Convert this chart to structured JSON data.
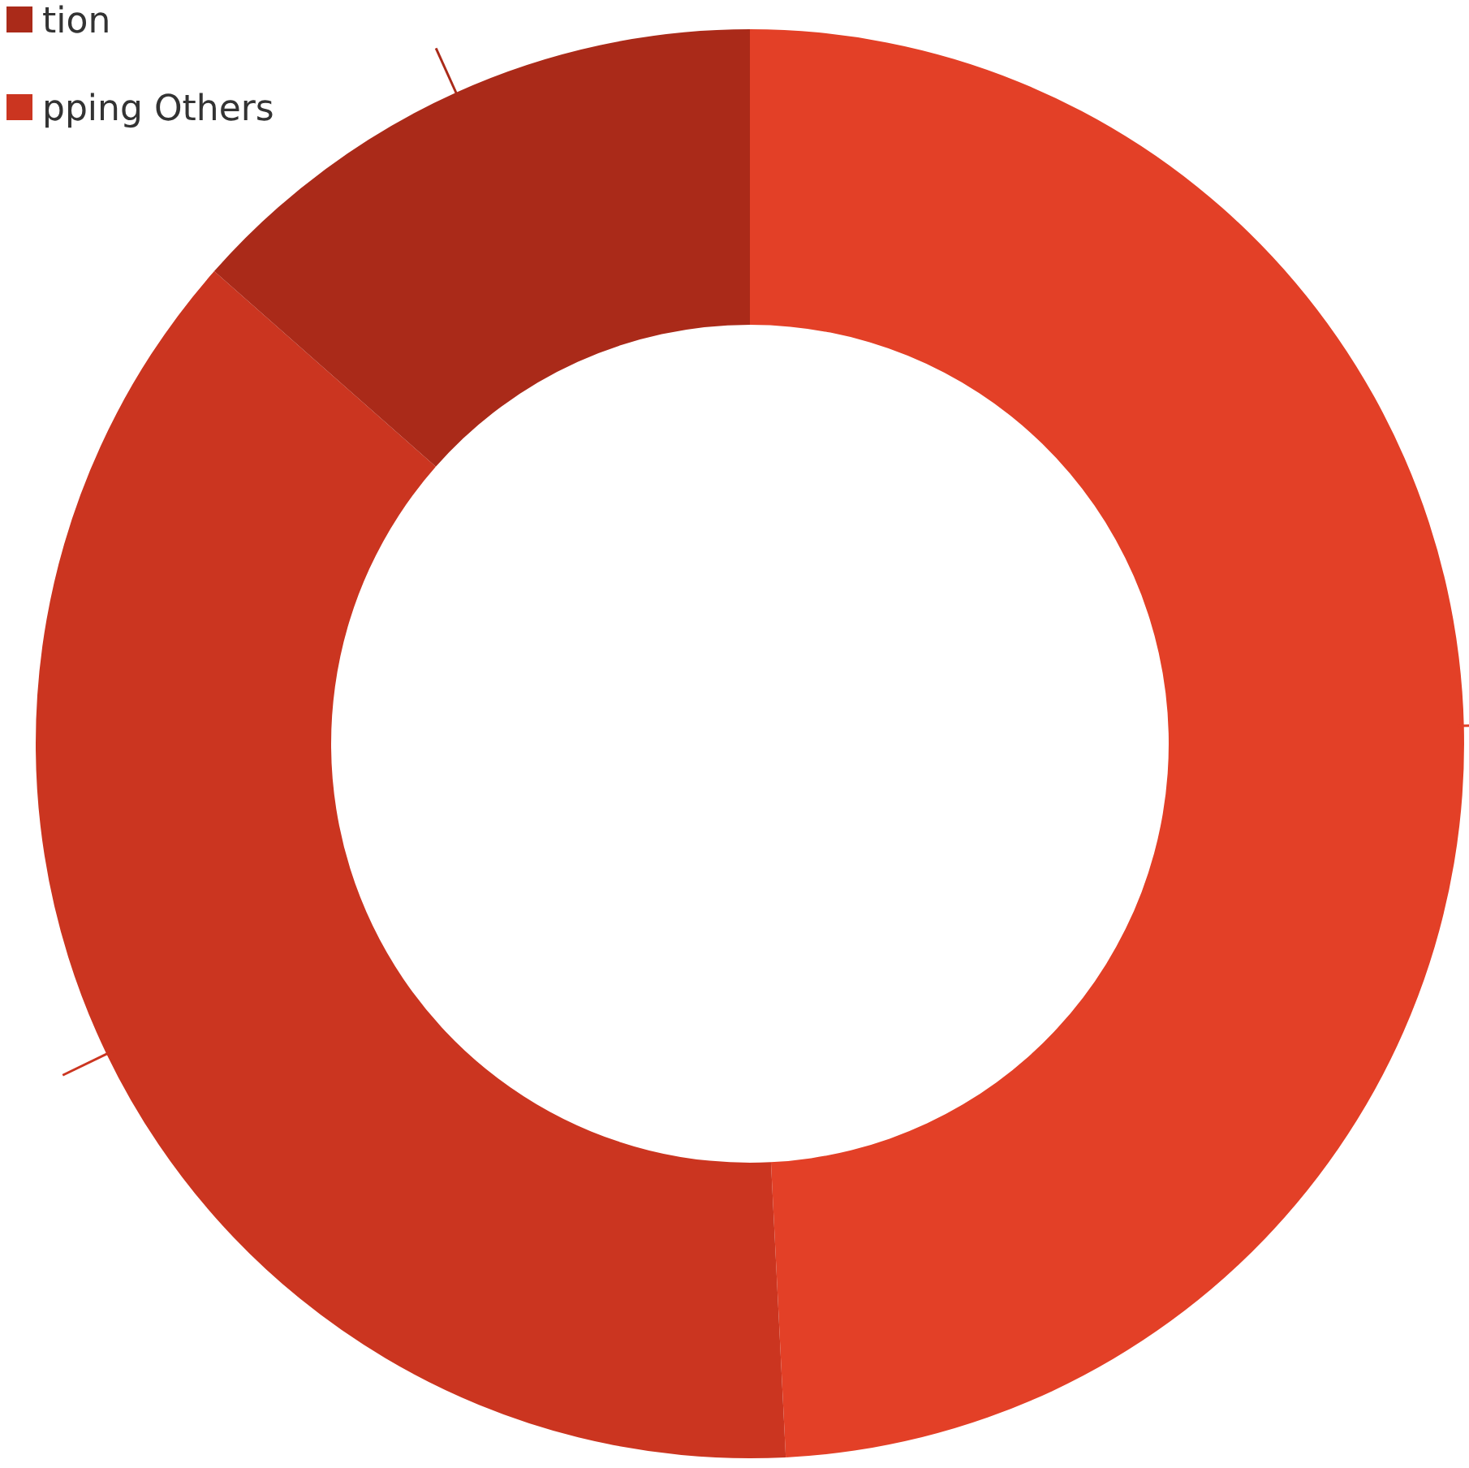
{
  "chart_data": {
    "type": "donut",
    "categories": [
      null,
      "pping Others",
      "tion"
    ],
    "values": [
      49.2,
      37.3,
      13.5
    ],
    "colors": [
      "#e34027",
      "#cb3520",
      "#aa2a19"
    ],
    "legend": "top left"
  }
}
